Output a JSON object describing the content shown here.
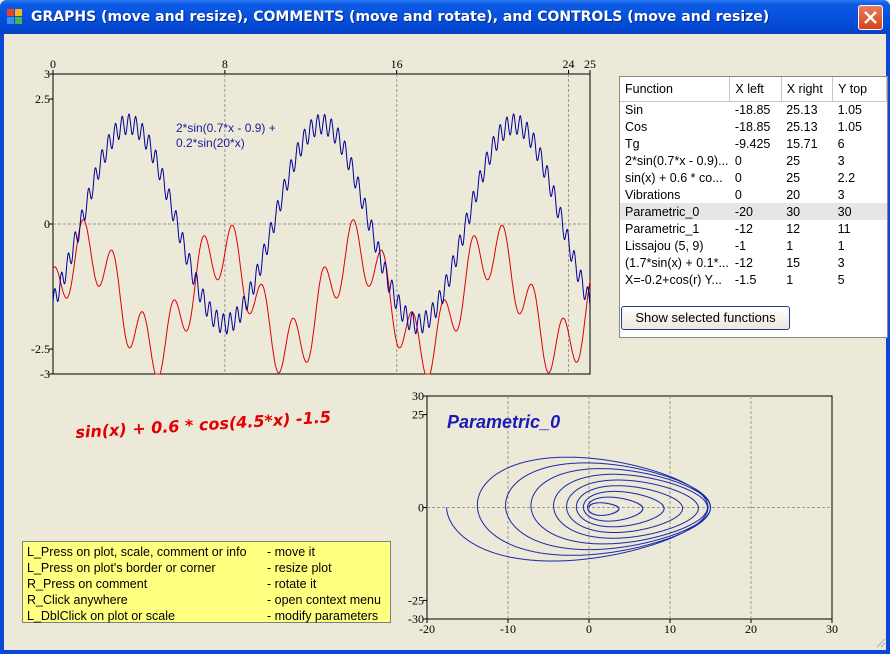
{
  "window": {
    "title": "GRAPHS (move and resize), COMMENTS (move and rotate), and CONTROLS (move and resize)",
    "close_icon": "close-x-icon",
    "colors": {
      "titlebar": "#0650dc",
      "close": "#d5431d",
      "client": "#ece9d8"
    }
  },
  "plot1": {
    "x_ticks": [
      "0",
      "8",
      "16",
      "24",
      "25"
    ],
    "y_ticks": [
      "3",
      "2.5",
      "0",
      "-2.5",
      "-3"
    ],
    "annotation_line1": "2*sin(0.7*x - 0.9) +",
    "annotation_line2": "0.2*sin(20*x)",
    "comment": "sin(x) + 0.6 * cos(4.5*x) -1.5",
    "colors": {
      "blue": "#000099",
      "red": "#dd0000",
      "annotation": "#1a1aa0",
      "background": "#ece9d8"
    }
  },
  "function_list": {
    "headers": [
      "Function",
      "X left",
      "X right",
      "Y top"
    ],
    "rows": [
      [
        "Sin",
        "-18.85",
        "25.13",
        "1.05"
      ],
      [
        "Cos",
        "-18.85",
        "25.13",
        "1.05"
      ],
      [
        "Tg",
        "-9.425",
        "15.71",
        "6"
      ],
      [
        "2*sin(0.7*x - 0.9)...",
        "0",
        "25",
        "3"
      ],
      [
        "sin(x) + 0.6 * co...",
        "0",
        "25",
        "2.2"
      ],
      [
        "Vibrations",
        "0",
        "20",
        "3"
      ],
      [
        "Parametric_0",
        "-20",
        "30",
        "30"
      ],
      [
        "Parametric_1",
        "-12",
        "12",
        "11"
      ],
      [
        "Lissajou (5, 9)",
        "-1",
        "1",
        "1"
      ],
      [
        "(1.7*sin(x) + 0.1*...",
        "-12",
        "15",
        "3"
      ],
      [
        "X=-0.2+cos(r)  Y...",
        "-1.5",
        "1",
        "5"
      ]
    ],
    "selected_row": "Parametric_0",
    "button_label": "Show selected functions"
  },
  "plot2": {
    "title": "Parametric_0",
    "x_ticks": [
      "-20",
      "-10",
      "0",
      "10",
      "20",
      "30"
    ],
    "y_ticks": [
      "30",
      "25",
      "0",
      "-25",
      "-30"
    ],
    "colors": {
      "curve": "#1a2aa8",
      "title": "#1a1ab8"
    }
  },
  "info": {
    "rows": [
      {
        "action": "L_Press on plot, scale, comment or info",
        "effect": "- move it"
      },
      {
        "action": "L_Press on plot's border or corner",
        "effect": "- resize plot"
      },
      {
        "action": "R_Press on comment",
        "effect": "- rotate it"
      },
      {
        "action": "R_Click anywhere",
        "effect": "- open context menu"
      },
      {
        "action": "L_DblClick on plot or scale",
        "effect": "- modify parameters"
      }
    ],
    "colors": {
      "background": "#ffff80"
    }
  }
}
